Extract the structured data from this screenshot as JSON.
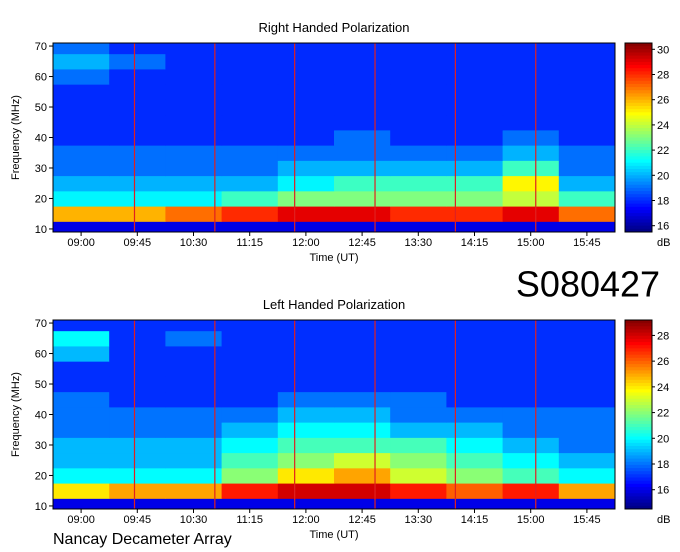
{
  "chart_data": [
    {
      "type": "heatmap",
      "title": "Right Handed Polarization",
      "xlabel": "Time (UT)",
      "ylabel": "Frequency (MHz)",
      "x": [
        "09:00",
        "09:45",
        "10:30",
        "11:15",
        "12:00",
        "12:45",
        "13:30",
        "14:15",
        "15:00",
        "15:45"
      ],
      "y": [
        10,
        15,
        20,
        25,
        30,
        35,
        40,
        45,
        50,
        55,
        60,
        65,
        70
      ],
      "ylim": [
        9,
        71
      ],
      "yticks": [
        10,
        20,
        30,
        40,
        50,
        60,
        70
      ],
      "z": [
        [
          17,
          17,
          17,
          17,
          17,
          17,
          17,
          17,
          17,
          17
        ],
        [
          26,
          26,
          27,
          28,
          29,
          29,
          28,
          28,
          29,
          27
        ],
        [
          21,
          21,
          21,
          22,
          23,
          23,
          23,
          23,
          24,
          22
        ],
        [
          20,
          20,
          20,
          20,
          21,
          22,
          22,
          22,
          25,
          20
        ],
        [
          19,
          19,
          19,
          19,
          20,
          20,
          20,
          20,
          22,
          19
        ],
        [
          19,
          19,
          19,
          19,
          19,
          19,
          19,
          19,
          20,
          19
        ],
        [
          18,
          18,
          18,
          18,
          18,
          19,
          18,
          18,
          19,
          18
        ],
        [
          18,
          18,
          18,
          18,
          18,
          18,
          18,
          18,
          18,
          18
        ],
        [
          18,
          18,
          18,
          18,
          18,
          18,
          18,
          18,
          18,
          18
        ],
        [
          18,
          18,
          18,
          18,
          18,
          18,
          18,
          18,
          18,
          18
        ],
        [
          19,
          18,
          18,
          18,
          18,
          18,
          18,
          18,
          18,
          18
        ],
        [
          20,
          19,
          18,
          18,
          18,
          18,
          18,
          18,
          18,
          18
        ],
        [
          19,
          18,
          18,
          18,
          18,
          18,
          18,
          18,
          18,
          18
        ]
      ],
      "colorbar_label": "dB",
      "clim": [
        15.5,
        30.5
      ],
      "cticks": [
        16,
        18,
        20,
        22,
        24,
        26,
        28,
        30
      ],
      "colormap": "jet"
    },
    {
      "type": "heatmap",
      "title": "Left Handed Polarization",
      "xlabel": "Time (UT)",
      "ylabel": "Frequency (MHz)",
      "x": [
        "09:00",
        "09:45",
        "10:30",
        "11:15",
        "12:00",
        "12:45",
        "13:30",
        "14:15",
        "15:00",
        "15:45"
      ],
      "y": [
        10,
        15,
        20,
        25,
        30,
        35,
        40,
        45,
        50,
        55,
        60,
        65,
        70
      ],
      "ylim": [
        9,
        71
      ],
      "yticks": [
        10,
        20,
        30,
        40,
        50,
        60,
        70
      ],
      "z": [
        [
          16,
          16,
          16,
          16,
          16,
          16,
          16,
          16,
          16,
          16
        ],
        [
          24,
          25,
          25,
          27,
          28,
          28,
          27,
          26,
          27,
          25
        ],
        [
          20,
          20,
          20,
          22,
          24,
          25,
          23,
          22,
          21,
          20
        ],
        [
          19,
          19,
          19,
          21,
          22,
          23,
          22,
          21,
          20,
          19
        ],
        [
          19,
          19,
          19,
          20,
          21,
          21,
          21,
          20,
          19,
          18
        ],
        [
          18,
          18,
          18,
          19,
          20,
          20,
          19,
          19,
          18,
          18
        ],
        [
          18,
          18,
          18,
          18,
          19,
          19,
          18,
          18,
          18,
          18
        ],
        [
          18,
          17,
          17,
          17,
          18,
          18,
          18,
          17,
          17,
          17
        ],
        [
          17,
          17,
          17,
          17,
          17,
          17,
          17,
          17,
          17,
          17
        ],
        [
          17,
          17,
          17,
          17,
          17,
          17,
          17,
          17,
          17,
          17
        ],
        [
          19,
          17,
          17,
          17,
          17,
          17,
          17,
          17,
          17,
          17
        ],
        [
          20,
          17,
          18,
          17,
          17,
          17,
          17,
          17,
          17,
          17
        ],
        [
          17,
          17,
          17,
          17,
          17,
          17,
          17,
          17,
          17,
          17
        ]
      ],
      "colorbar_label": "dB",
      "clim": [
        14.5,
        29.2
      ],
      "cticks": [
        16,
        18,
        20,
        22,
        24,
        26,
        28
      ],
      "colormap": "jet"
    }
  ],
  "annotations": {
    "id": "S080427",
    "observatory": "Nancay Decameter Array"
  }
}
